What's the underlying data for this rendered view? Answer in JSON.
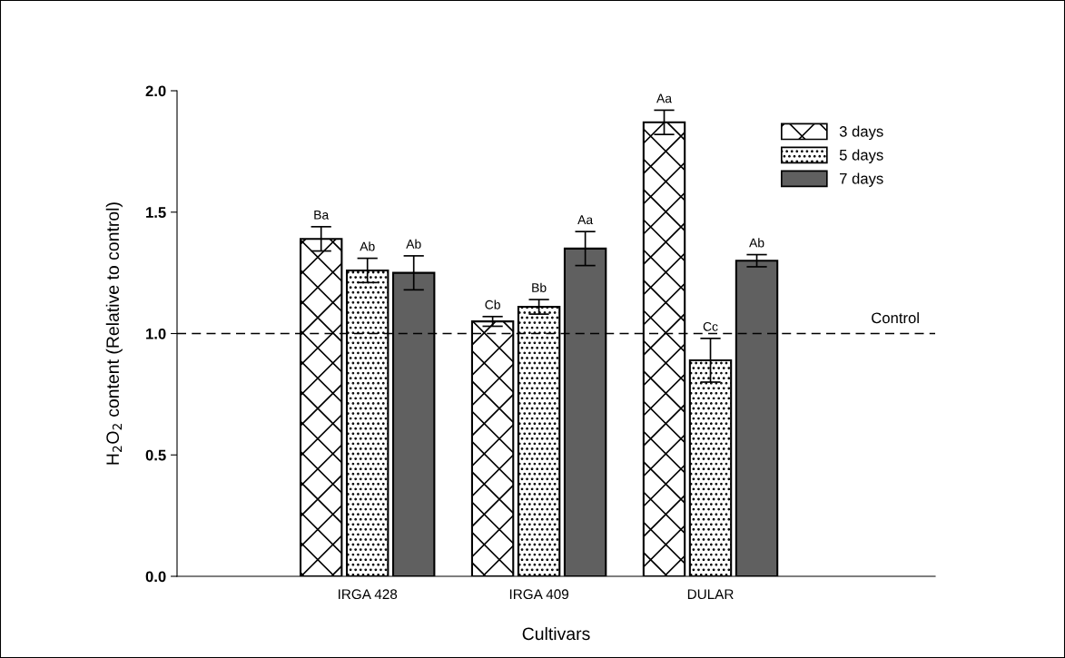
{
  "chart_data": {
    "type": "bar",
    "xlabel": "Cultivars",
    "ylabel": "H$_{2}$O$_{2}$ content (Relative to control)",
    "categories": [
      "IRGA 428",
      "IRGA 409",
      "DULAR"
    ],
    "series": [
      {
        "name": "3 days",
        "color": "#000000",
        "values": [
          1.39,
          1.05,
          1.87
        ],
        "errors": [
          0.05,
          0.02,
          0.05
        ],
        "value_labels": [
          "Ba",
          "Cb",
          "Aa"
        ]
      },
      {
        "name": "5 days",
        "color": "#000000",
        "values": [
          1.26,
          1.11,
          0.89
        ],
        "errors": [
          0.05,
          0.03,
          0.09
        ],
        "value_labels": [
          "Ab",
          "Bb",
          "Cc"
        ]
      },
      {
        "name": "7 days",
        "color": "#606060",
        "values": [
          1.25,
          1.35,
          1.3
        ],
        "errors": [
          0.07,
          0.07,
          0.025
        ],
        "value_labels": [
          "Ab",
          "Aa",
          "Ab"
        ]
      }
    ],
    "ylim": [
      0,
      2.0
    ],
    "yticks": [
      {
        "value": 0,
        "label": "0.0"
      },
      {
        "value": 0.5,
        "label": "0.5"
      },
      {
        "value": 1.0,
        "label": "1.0"
      },
      {
        "value": 1.5,
        "label": "1.5"
      },
      {
        "value": 2.0,
        "label": "2.0"
      }
    ],
    "ref_lines": [
      {
        "axis": "y",
        "value": 1.0,
        "label": "Control",
        "color": "#000000",
        "line_style": "dashed"
      }
    ],
    "legend": "top right",
    "grid": false
  }
}
